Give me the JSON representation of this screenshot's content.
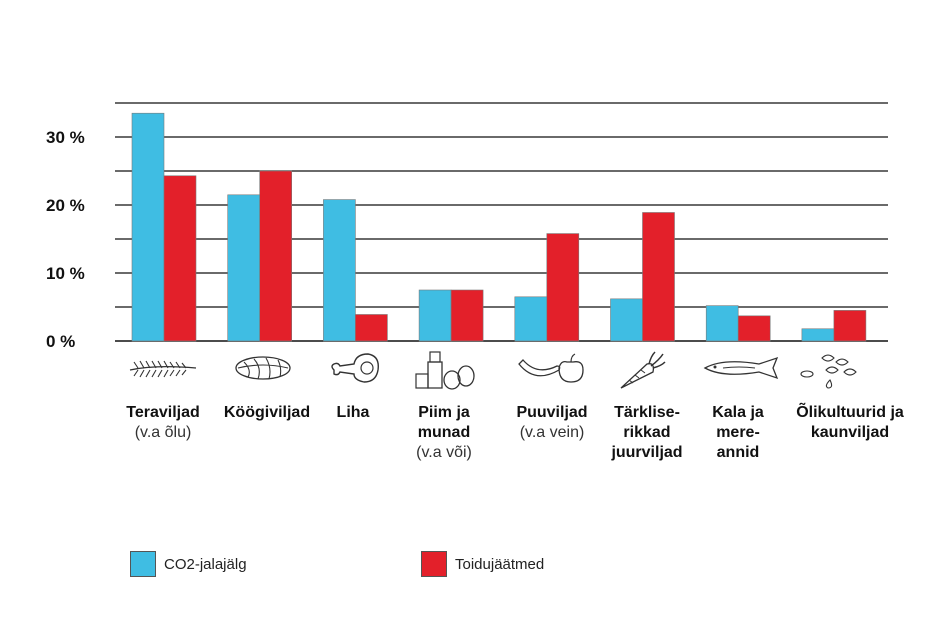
{
  "chart_data": {
    "type": "bar",
    "categories": [
      {
        "label": "Teraviljad",
        "sub": "(v.a õlu)",
        "icon": "wheat-icon"
      },
      {
        "label": "Köögiviljad",
        "sub": "",
        "icon": "leafy-vegetable-icon"
      },
      {
        "label": "Liha",
        "sub": "",
        "icon": "meat-leg-icon"
      },
      {
        "label": "Piim ja munad",
        "sub": "(v.a või)",
        "icon": "milk-eggs-icon"
      },
      {
        "label": "Puuviljad",
        "sub": "(v.a vein)",
        "icon": "banana-apple-icon"
      },
      {
        "label": "Tärklise-rikkad juurviljad",
        "sub": "",
        "icon": "carrot-icon"
      },
      {
        "label": "Kala ja mere-annid",
        "sub": "",
        "icon": "fish-icon"
      },
      {
        "label": "Õlikultuurid ja kaunviljad",
        "sub": "",
        "icon": "beans-seeds-icon"
      }
    ],
    "series": [
      {
        "name": "CO2-jalajälg",
        "color": "#3fbde3",
        "values": [
          33.5,
          21.5,
          20.8,
          7.5,
          6.5,
          6.2,
          5.2,
          1.8
        ]
      },
      {
        "name": "Toidujäätmed",
        "color": "#e3202a",
        "values": [
          24.3,
          25.0,
          3.9,
          7.5,
          15.8,
          18.9,
          3.7,
          4.5
        ]
      }
    ],
    "yticks": [
      "0 %",
      "10 %",
      "20 %",
      "30 %"
    ],
    "ylim": [
      0,
      35
    ],
    "grid": true,
    "legend_position": "bottom"
  }
}
